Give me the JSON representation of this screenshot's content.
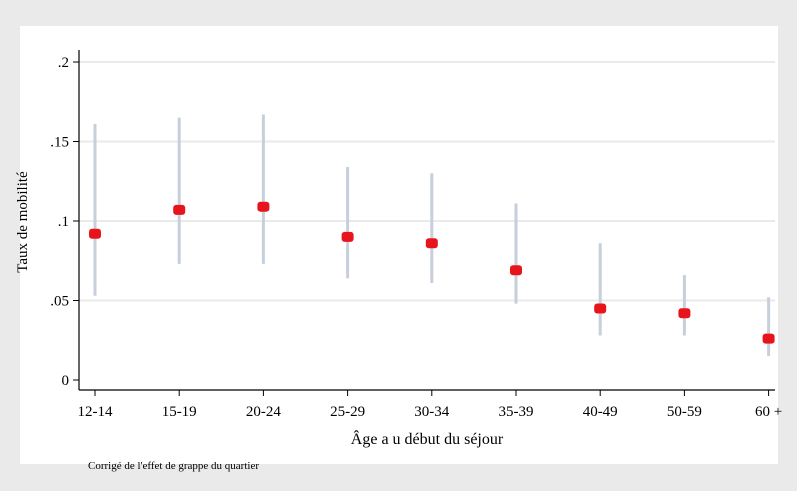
{
  "chart_data": {
    "type": "scatter",
    "title": "",
    "xlabel": "Âge a u début du séjour",
    "ylabel": "Taux de mobilité",
    "note": "Corrigé de l'effet de grappe du quartier",
    "categories": [
      "12-14",
      "15-19",
      "20-24",
      "25-29",
      "30-34",
      "35-39",
      "40-49",
      "50-59",
      "60 +"
    ],
    "values": [
      0.092,
      0.107,
      0.109,
      0.09,
      0.086,
      0.069,
      0.045,
      0.042,
      0.026
    ],
    "ci_low": [
      0.053,
      0.073,
      0.073,
      0.064,
      0.061,
      0.048,
      0.028,
      0.028,
      0.015
    ],
    "ci_high": [
      0.161,
      0.165,
      0.167,
      0.134,
      0.13,
      0.111,
      0.086,
      0.066,
      0.052
    ],
    "ylim": [
      0,
      0.2
    ],
    "yticks": [
      0,
      0.05,
      0.1,
      0.15,
      0.2
    ],
    "ytick_labels": [
      "0",
      ".05",
      ".1",
      ".15",
      ".2"
    ],
    "grid": true,
    "colors": {
      "point": "#e8141c",
      "interval": "#c6cfdb",
      "grid": "#eaeaea",
      "plot_bg": "#ffffff",
      "outer_bg": "#eaeaea",
      "axis": "#000000"
    }
  }
}
